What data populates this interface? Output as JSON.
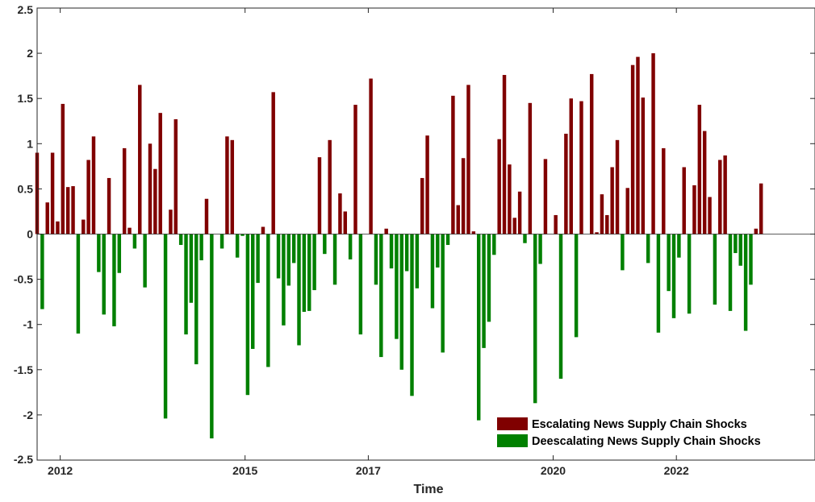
{
  "chart_data": {
    "type": "bar",
    "xlabel": "Time",
    "ylabel": "",
    "title": "",
    "ylim": [
      -2.5,
      2.5
    ],
    "yticks": [
      -2.5,
      -2,
      -1.5,
      -1,
      -0.5,
      0,
      0.5,
      1,
      1.5,
      2,
      2.5
    ],
    "xlim": [
      2011.625,
      2024.25
    ],
    "xticks": [
      {
        "value": 2012,
        "label": "2012"
      },
      {
        "value": 2015,
        "label": "2015"
      },
      {
        "value": 2017,
        "label": "2017"
      },
      {
        "value": 2020,
        "label": "2020"
      },
      {
        "value": 2022,
        "label": "2022"
      }
    ],
    "colors": {
      "escalating": "#800000",
      "deescalating": "#008000"
    },
    "legend": {
      "placement": "bottom-right",
      "entries": [
        {
          "key": "escalating",
          "label": "Escalating News Supply Chain Shocks"
        },
        {
          "key": "deescalating",
          "label": "Deescalating News Supply Chain Shocks"
        }
      ]
    },
    "values": [
      0.9,
      -0.83,
      0.35,
      0.9,
      0.14,
      1.44,
      0.52,
      0.53,
      -1.1,
      0.16,
      0.82,
      1.08,
      -0.42,
      -0.89,
      0.62,
      -1.02,
      -0.43,
      0.95,
      0.07,
      -0.16,
      1.65,
      -0.59,
      1.0,
      0.72,
      1.34,
      -2.04,
      0.27,
      1.27,
      -0.12,
      -1.11,
      -0.76,
      -1.44,
      -0.29,
      0.39,
      -2.26,
      0.0,
      -0.16,
      1.08,
      1.04,
      -0.26,
      -0.02,
      -1.78,
      -1.27,
      -0.54,
      0.08,
      -1.47,
      1.57,
      -0.49,
      -1.01,
      -0.57,
      -0.32,
      -1.23,
      -0.86,
      -0.85,
      -0.62,
      0.85,
      -0.22,
      1.04,
      -0.56,
      0.45,
      0.25,
      -0.28,
      1.43,
      -1.11,
      0.0,
      1.72,
      -0.56,
      -1.36,
      0.06,
      -0.38,
      -1.16,
      -1.5,
      -0.41,
      -1.79,
      -0.6,
      0.62,
      1.09,
      -0.82,
      -0.37,
      -1.31,
      -0.12,
      1.53,
      0.32,
      0.84,
      1.65,
      0.03,
      -2.06,
      -1.26,
      -0.97,
      -0.23,
      1.05,
      1.76,
      0.77,
      0.18,
      0.47,
      -0.1,
      1.45,
      -1.87,
      -0.33,
      0.83,
      0.0,
      0.21,
      -1.6,
      1.11,
      1.5,
      -1.14,
      1.47,
      0.0,
      1.77,
      0.02,
      0.44,
      0.21,
      0.74,
      1.04,
      -0.4,
      0.51,
      1.87,
      1.96,
      1.51,
      -0.32,
      2.0,
      -1.09,
      0.95,
      -0.63,
      -0.93,
      -0.26,
      0.74,
      -0.88,
      0.54,
      1.43,
      1.14,
      0.41,
      -0.78,
      0.82,
      0.87,
      -0.85,
      -0.21,
      -0.35,
      -1.07,
      -0.56,
      0.06,
      0.56
    ]
  }
}
